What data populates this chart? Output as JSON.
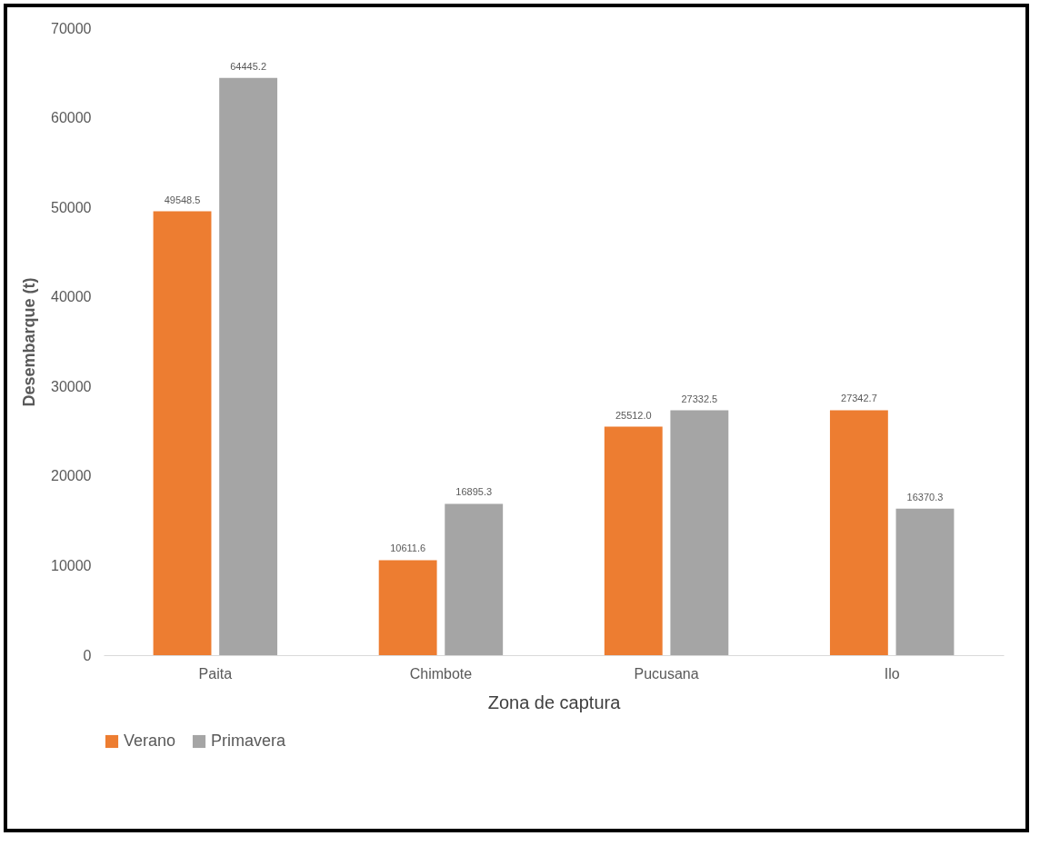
{
  "chart_data": {
    "type": "bar",
    "xlabel": "Zona de captura",
    "ylabel": "Desembarque (t)",
    "categories": [
      "Paita",
      "Chimbote",
      "Pucusana",
      "Ilo"
    ],
    "series": [
      {
        "name": "Verano",
        "color": "#ed7d31",
        "values": [
          49548.5,
          10611.6,
          25512.0,
          27342.7
        ],
        "value_labels": [
          "49548.5",
          "10611.6",
          "25512.0",
          "27342.7"
        ]
      },
      {
        "name": "Primavera",
        "color": "#a5a5a5",
        "values": [
          64445.2,
          16895.3,
          27332.5,
          16370.3
        ],
        "value_labels": [
          "64445.2",
          "16895.3",
          "27332.5",
          "16370.3"
        ]
      }
    ],
    "ylim": [
      0,
      70000
    ],
    "yticks": [
      0,
      10000,
      20000,
      30000,
      40000,
      50000,
      60000,
      70000
    ],
    "grid": false,
    "legend": "bottom"
  }
}
